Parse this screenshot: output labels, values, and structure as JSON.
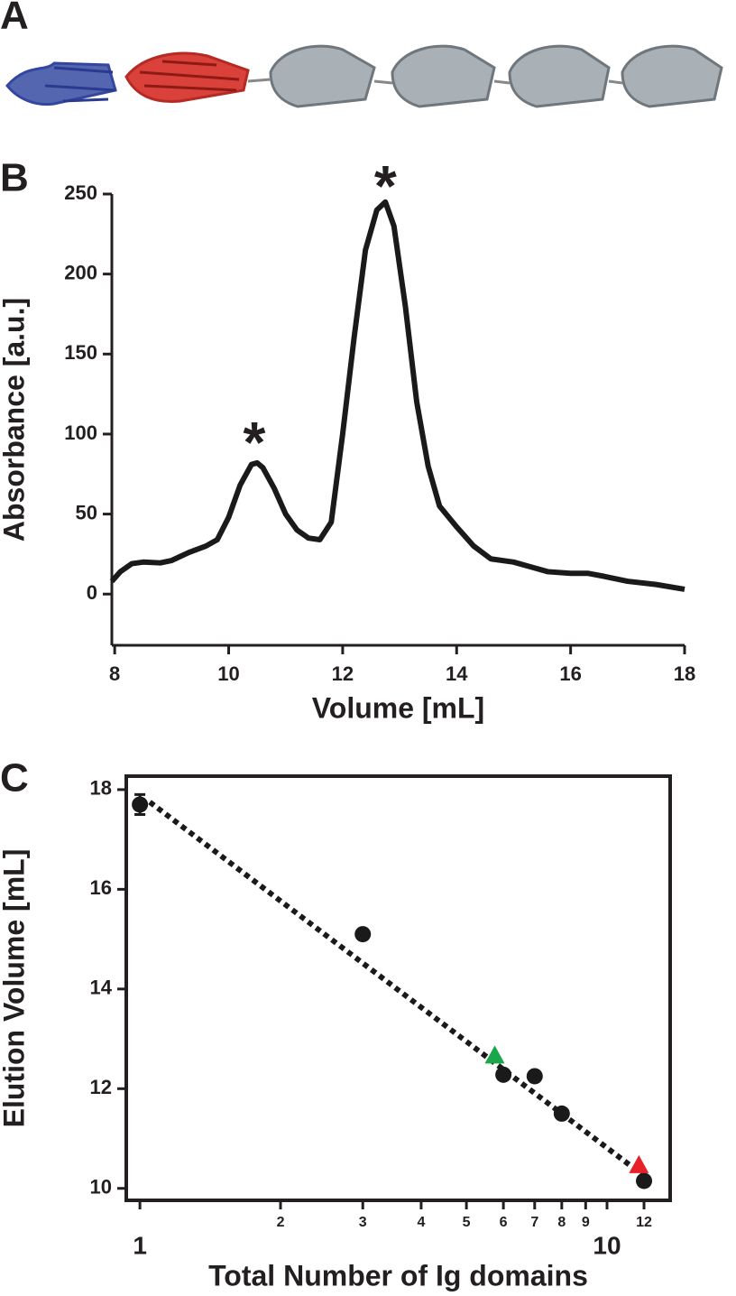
{
  "panel_a": {
    "label": "A"
  },
  "chart_data": [
    {
      "type": "line",
      "panel": "B",
      "x_label": "Volume [mL]",
      "y_label": "Absorbance [a.u.]",
      "xlim": [
        7.95,
        18
      ],
      "xticks": [
        8,
        10,
        12,
        14,
        16,
        18
      ],
      "ylim": [
        -32,
        250
      ],
      "yticks": [
        0,
        50,
        100,
        150,
        200,
        250
      ],
      "color": "#1a1a1a",
      "x": [
        7.95,
        8.1,
        8.3,
        8.5,
        8.8,
        9.0,
        9.3,
        9.6,
        9.8,
        10.0,
        10.2,
        10.4,
        10.5,
        10.6,
        10.8,
        11.0,
        11.2,
        11.4,
        11.6,
        11.8,
        12.0,
        12.2,
        12.4,
        12.6,
        12.75,
        12.9,
        13.1,
        13.3,
        13.5,
        13.7,
        14.0,
        14.3,
        14.6,
        15.0,
        15.3,
        15.6,
        16.0,
        16.3,
        16.6,
        17.0,
        17.5,
        18.0
      ],
      "values": [
        8,
        14,
        19,
        20,
        19.5,
        21,
        26,
        30,
        34,
        48,
        68,
        81,
        82,
        79,
        66,
        50,
        40,
        35,
        34,
        45,
        100,
        160,
        215,
        240,
        245,
        230,
        180,
        120,
        80,
        55,
        42,
        30,
        22,
        20,
        17,
        14,
        13,
        13,
        11,
        8,
        6,
        3
      ],
      "annotations": [
        {
          "text": "*",
          "x": 10.45,
          "y": 100,
          "color": "#e8202a"
        },
        {
          "text": "*",
          "x": 12.75,
          "y": 260,
          "color": "#1aa64a"
        }
      ]
    },
    {
      "type": "scatter",
      "panel": "C",
      "x_label": "Total Number of Ig domains",
      "y_label": "Elution Volume [mL]",
      "log_x": true,
      "xlim": [
        0.935,
        13.65
      ],
      "xticks": [
        1,
        2,
        3,
        4,
        5,
        6,
        7,
        8,
        9,
        10,
        12
      ],
      "ylim": [
        9.76,
        18.27
      ],
      "yticks": [
        10,
        12,
        14,
        16,
        18
      ],
      "series": [
        {
          "marker": "dotted-line",
          "color": "#1a1a1a",
          "x": [
            1.05,
            12.2
          ],
          "values": [
            17.75,
            10.2
          ]
        },
        {
          "marker": "circle",
          "color": "#1a1a1a",
          "x": [
            1,
            3,
            6,
            7,
            8,
            12
          ],
          "values": [
            17.7,
            15.1,
            12.28,
            12.25,
            11.5,
            10.15
          ],
          "errors": [
            0.2,
            null,
            null,
            null,
            null,
            null
          ]
        },
        {
          "marker": "triangle",
          "color": "#1aa64a",
          "x": [
            5.75
          ],
          "values": [
            12.65
          ]
        },
        {
          "marker": "triangle",
          "color": "#e8202a",
          "x": [
            11.7
          ],
          "values": [
            10.45
          ]
        }
      ]
    }
  ]
}
